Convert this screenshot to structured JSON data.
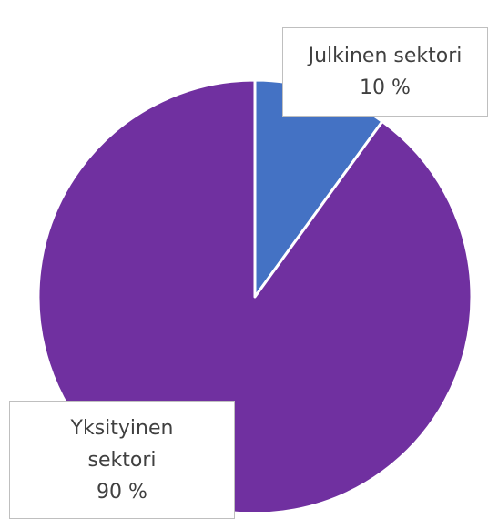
{
  "chart_data": {
    "type": "pie",
    "categories": [
      "Julkinen sektori",
      "Yksityinen sektori"
    ],
    "values": [
      10,
      90
    ],
    "value_labels": [
      "10 %",
      "90 %"
    ],
    "colors": [
      "#4472c4",
      "#7030a0"
    ]
  }
}
